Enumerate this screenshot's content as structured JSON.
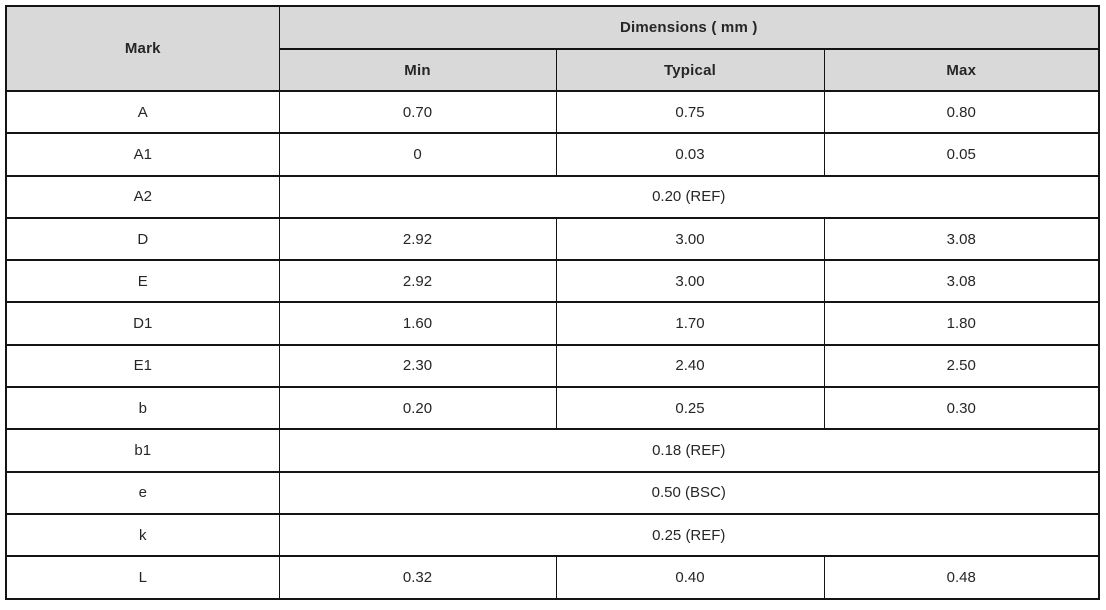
{
  "table": {
    "mark_header": "Mark",
    "dimensions_header": "Dimensions ( mm )",
    "columns": [
      "Min",
      "Typical",
      "Max"
    ],
    "rows": [
      {
        "mark": "A",
        "min": "0.70",
        "typical": "0.75",
        "max": "0.80"
      },
      {
        "mark": "A1",
        "min": "0",
        "typical": "0.03",
        "max": "0.05"
      },
      {
        "mark": "A2",
        "span": "0.20 (REF)"
      },
      {
        "mark": "D",
        "min": "2.92",
        "typical": "3.00",
        "max": "3.08"
      },
      {
        "mark": "E",
        "min": "2.92",
        "typical": "3.00",
        "max": "3.08"
      },
      {
        "mark": "D1",
        "min": "1.60",
        "typical": "1.70",
        "max": "1.80"
      },
      {
        "mark": "E1",
        "min": "2.30",
        "typical": "2.40",
        "max": "2.50"
      },
      {
        "mark": "b",
        "min": "0.20",
        "typical": "0.25",
        "max": "0.30"
      },
      {
        "mark": "b1",
        "span": "0.18 (REF)"
      },
      {
        "mark": "e",
        "span": "0.50 (BSC)"
      },
      {
        "mark": "k",
        "span": "0.25 (REF)"
      },
      {
        "mark": "L",
        "min": "0.32",
        "typical": "0.40",
        "max": "0.48"
      }
    ],
    "colors": {
      "header_bg": "#d9d9d9",
      "border": "#141414",
      "text": "#262626"
    }
  }
}
